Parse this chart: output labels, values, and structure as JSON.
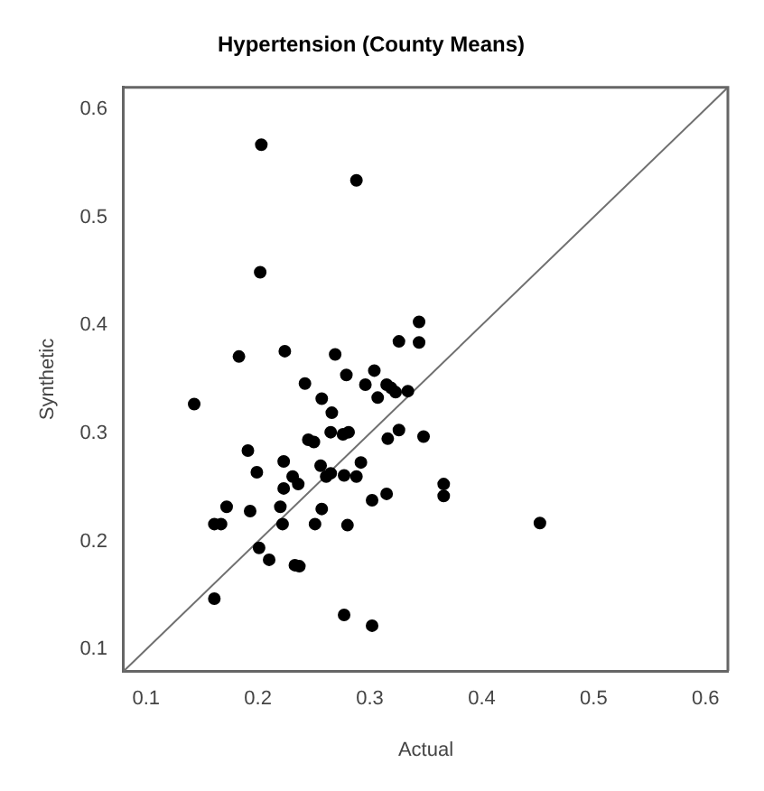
{
  "chart_data": {
    "type": "scatter",
    "title": "Hypertension (County Means)",
    "xlabel": "Actual",
    "ylabel": "Synthetic",
    "xlim": [
      0.08,
      0.62
    ],
    "ylim": [
      0.08,
      0.62
    ],
    "xticks": [
      0.1,
      0.2,
      0.3,
      0.4,
      0.5,
      0.6
    ],
    "yticks": [
      0.1,
      0.2,
      0.3,
      0.4,
      0.5,
      0.6
    ],
    "grid": false,
    "legend": false,
    "marker": "circle",
    "series": [
      {
        "color": "#000000",
        "x": [
          0.203,
          0.288,
          0.202,
          0.344,
          0.326,
          0.344,
          0.183,
          0.224,
          0.269,
          0.242,
          0.279,
          0.257,
          0.296,
          0.304,
          0.315,
          0.319,
          0.323,
          0.307,
          0.334,
          0.143,
          0.266,
          0.265,
          0.276,
          0.281,
          0.245,
          0.25,
          0.326,
          0.316,
          0.348,
          0.191,
          0.199,
          0.223,
          0.256,
          0.292,
          0.261,
          0.265,
          0.277,
          0.288,
          0.231,
          0.236,
          0.223,
          0.366,
          0.366,
          0.302,
          0.315,
          0.172,
          0.193,
          0.22,
          0.257,
          0.161,
          0.167,
          0.222,
          0.251,
          0.28,
          0.452,
          0.201,
          0.21,
          0.233,
          0.237,
          0.161,
          0.277,
          0.302
        ],
        "values": [
          0.567,
          0.534,
          0.449,
          0.403,
          0.385,
          0.384,
          0.371,
          0.376,
          0.373,
          0.346,
          0.354,
          0.332,
          0.345,
          0.358,
          0.345,
          0.342,
          0.338,
          0.333,
          0.339,
          0.327,
          0.319,
          0.301,
          0.299,
          0.301,
          0.294,
          0.292,
          0.303,
          0.295,
          0.297,
          0.284,
          0.264,
          0.274,
          0.27,
          0.273,
          0.26,
          0.263,
          0.261,
          0.26,
          0.26,
          0.253,
          0.249,
          0.253,
          0.242,
          0.238,
          0.244,
          0.232,
          0.228,
          0.232,
          0.23,
          0.216,
          0.216,
          0.216,
          0.216,
          0.215,
          0.217,
          0.194,
          0.183,
          0.178,
          0.177,
          0.147,
          0.132,
          0.122
        ]
      },
      {
        "type": "line",
        "color": "#707070",
        "marker": "none",
        "x": [
          0.08,
          0.62
        ],
        "values": [
          0.08,
          0.62
        ]
      }
    ]
  }
}
